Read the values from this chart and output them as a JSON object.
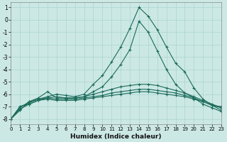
{
  "xlabel": "Humidex (Indice chaleur)",
  "bg_color": "#cce8e4",
  "grid_color": "#aad4d0",
  "line_color": "#1a6b5a",
  "xlim": [
    0,
    23
  ],
  "ylim": [
    -8.4,
    1.4
  ],
  "yticks": [
    1,
    0,
    -1,
    -2,
    -3,
    -4,
    -5,
    -6,
    -7,
    -8
  ],
  "xticks": [
    0,
    1,
    2,
    3,
    4,
    5,
    6,
    7,
    8,
    9,
    10,
    11,
    12,
    13,
    14,
    15,
    16,
    17,
    18,
    19,
    20,
    21,
    22,
    23
  ],
  "series": [
    {
      "x": [
        0,
        1,
        2,
        3,
        4,
        5,
        6,
        7,
        8,
        9,
        10,
        11,
        12,
        13,
        14,
        15,
        16,
        17,
        18,
        19,
        20,
        21,
        22,
        23
      ],
      "y": [
        -8.0,
        -7.3,
        -6.6,
        -6.4,
        -6.2,
        -6.0,
        -6.1,
        -6.2,
        -6.0,
        -5.2,
        -4.5,
        -3.4,
        -2.2,
        -0.7,
        1.0,
        0.3,
        -0.8,
        -2.2,
        -3.5,
        -4.2,
        -5.5,
        -6.4,
        -6.9,
        -7.3
      ]
    },
    {
      "x": [
        0,
        1,
        2,
        3,
        4,
        5,
        6,
        7,
        8,
        9,
        10,
        11,
        12,
        13,
        14,
        15,
        16,
        17,
        18,
        19,
        20,
        21,
        22,
        23
      ],
      "y": [
        -8.0,
        -7.2,
        -6.8,
        -6.5,
        -6.3,
        -6.2,
        -6.3,
        -6.3,
        -6.2,
        -5.8,
        -5.4,
        -4.6,
        -3.6,
        -2.4,
        -0.1,
        -1.0,
        -2.5,
        -4.0,
        -5.2,
        -5.9,
        -6.3,
        -6.8,
        -7.1,
        -7.4
      ]
    },
    {
      "x": [
        0,
        1,
        2,
        3,
        4,
        5,
        6,
        7,
        8,
        9,
        10,
        11,
        12,
        13,
        14,
        15,
        16,
        17,
        18,
        19,
        20,
        21,
        22,
        23
      ],
      "y": [
        -8.0,
        -7.1,
        -6.6,
        -6.3,
        -5.8,
        -6.3,
        -6.3,
        -6.3,
        -6.2,
        -6.0,
        -5.8,
        -5.6,
        -5.4,
        -5.3,
        -5.2,
        -5.2,
        -5.3,
        -5.5,
        -5.7,
        -5.9,
        -6.2,
        -6.5,
        -6.8,
        -7.1
      ]
    },
    {
      "x": [
        0,
        1,
        2,
        3,
        4,
        5,
        6,
        7,
        8,
        9,
        10,
        11,
        12,
        13,
        14,
        15,
        16,
        17,
        18,
        19,
        20,
        21,
        22,
        23
      ],
      "y": [
        -8.0,
        -7.0,
        -6.7,
        -6.4,
        -6.3,
        -6.4,
        -6.4,
        -6.4,
        -6.3,
        -6.2,
        -6.1,
        -5.9,
        -5.8,
        -5.7,
        -5.6,
        -5.6,
        -5.7,
        -5.8,
        -5.9,
        -6.1,
        -6.3,
        -6.6,
        -6.9,
        -7.1
      ]
    },
    {
      "x": [
        0,
        1,
        2,
        3,
        4,
        5,
        6,
        7,
        8,
        9,
        10,
        11,
        12,
        13,
        14,
        15,
        16,
        17,
        18,
        19,
        20,
        21,
        22,
        23
      ],
      "y": [
        -8.0,
        -7.0,
        -6.8,
        -6.5,
        -6.4,
        -6.5,
        -6.5,
        -6.5,
        -6.4,
        -6.3,
        -6.2,
        -6.1,
        -6.0,
        -5.9,
        -5.8,
        -5.8,
        -5.9,
        -6.0,
        -6.1,
        -6.2,
        -6.4,
        -6.6,
        -6.9,
        -7.0
      ]
    }
  ]
}
